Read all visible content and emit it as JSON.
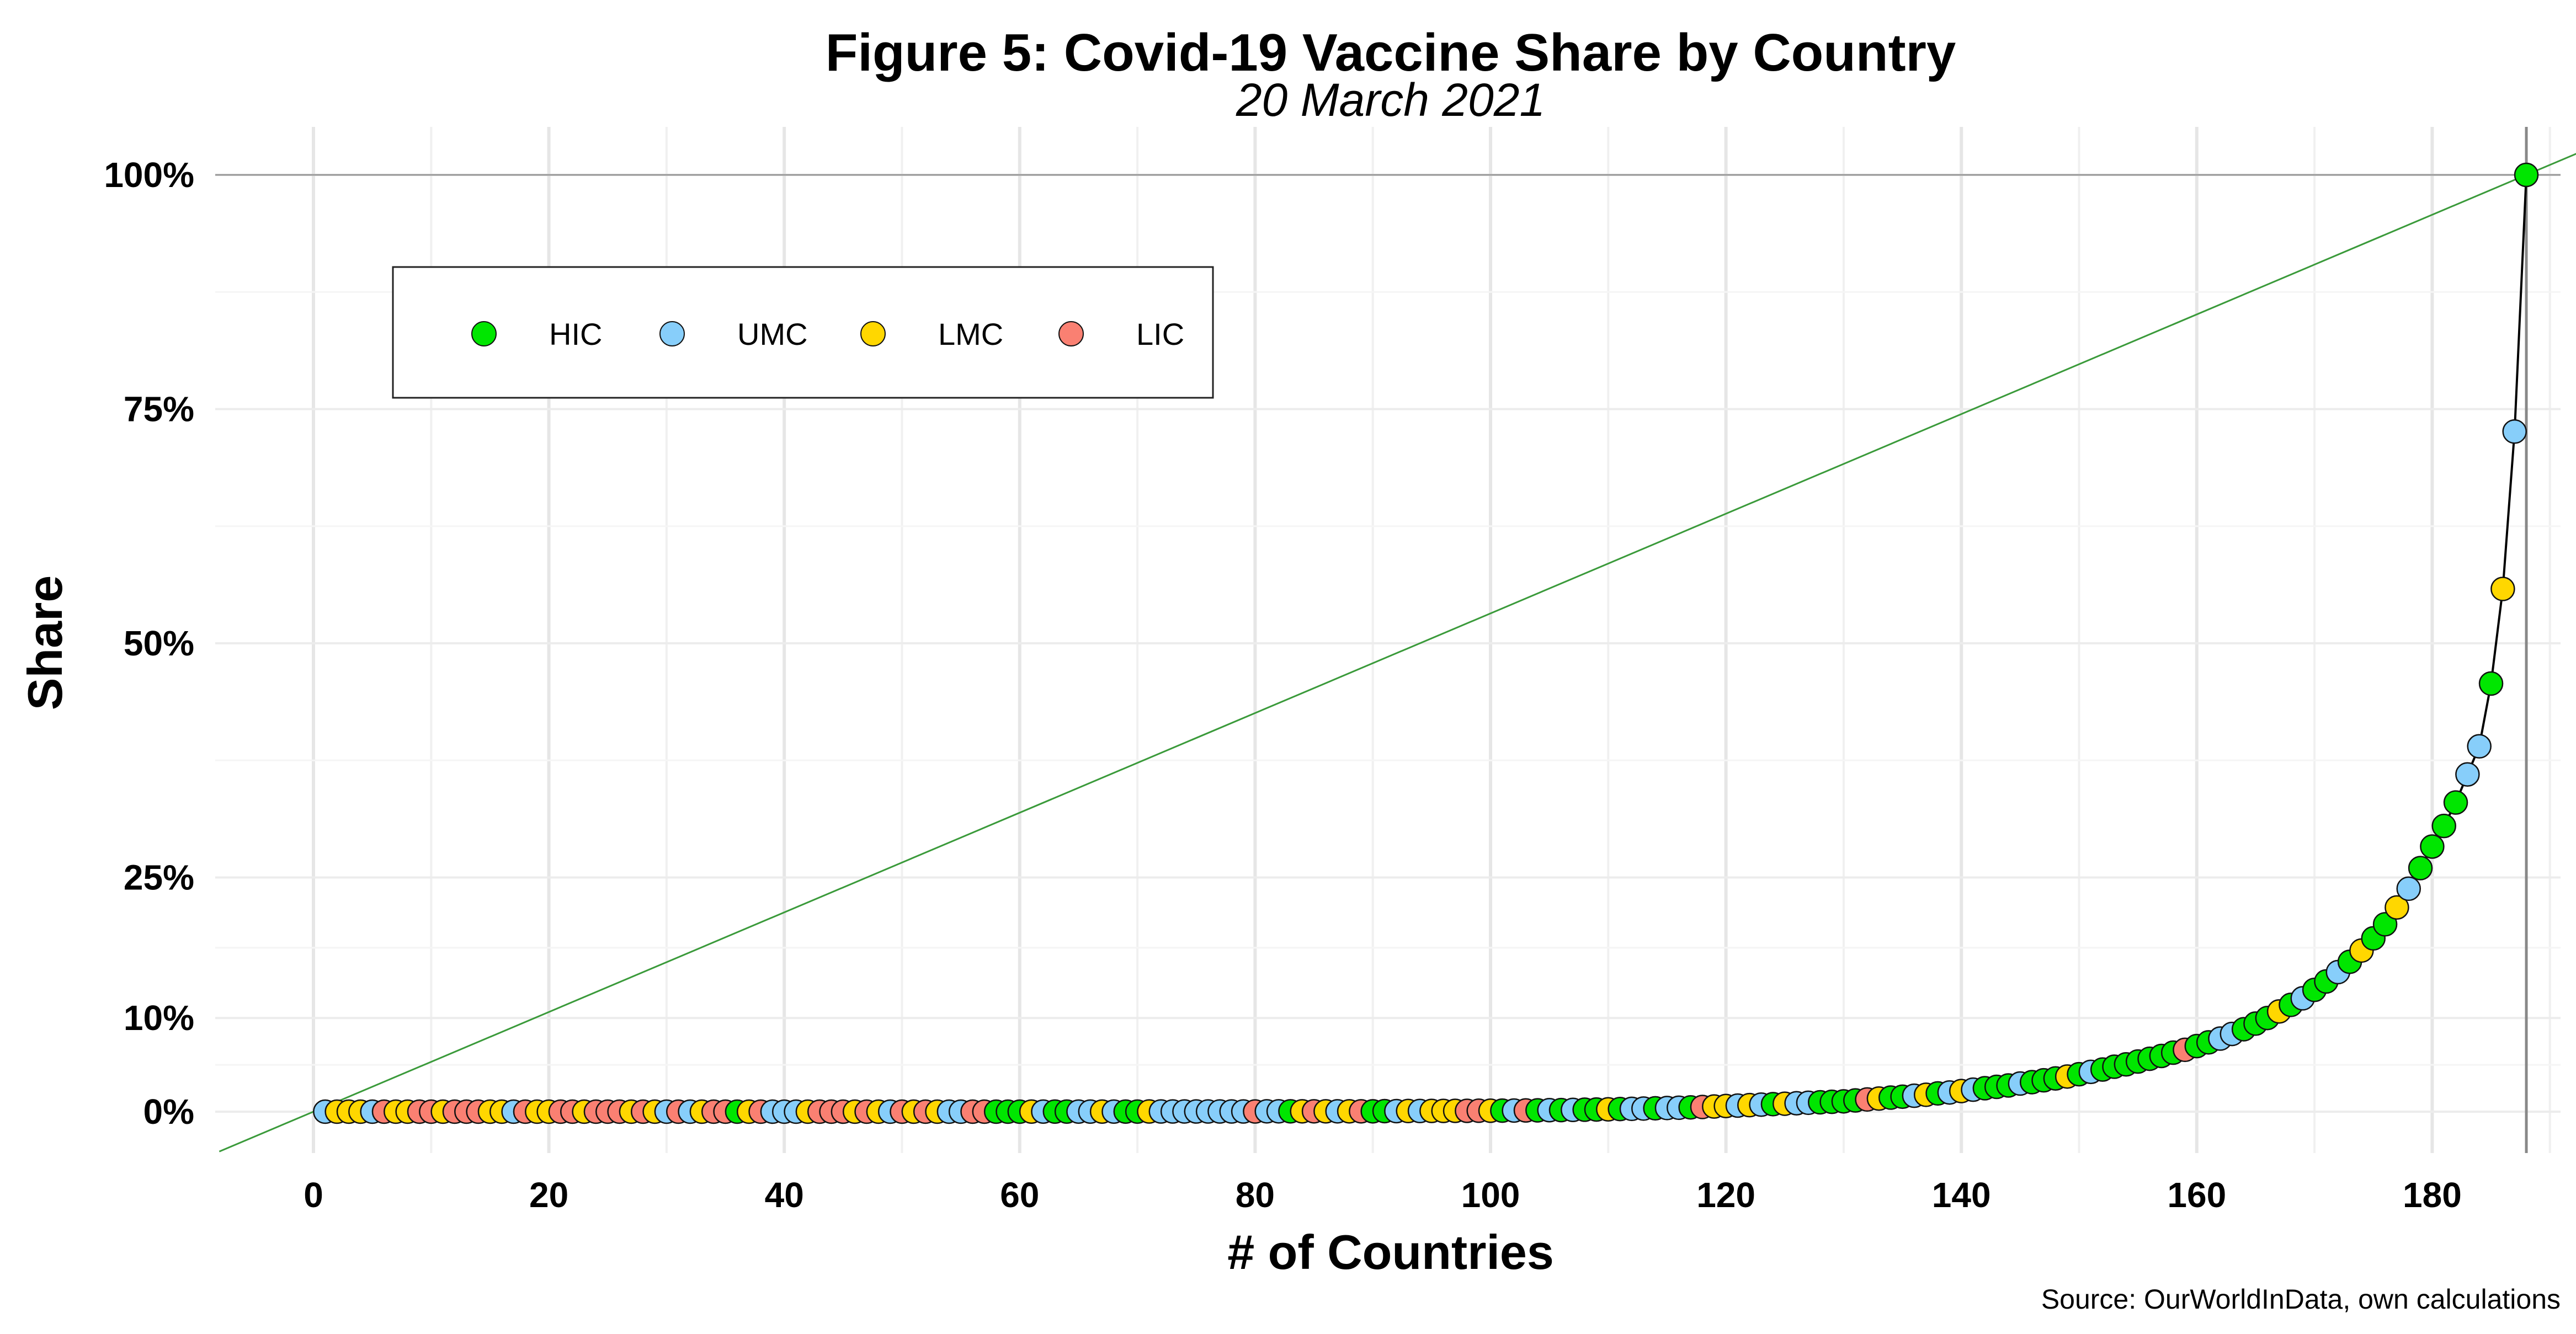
{
  "chart_data": {
    "type": "scatter",
    "title": "Figure 5: Covid-19 Vaccine Share by Country",
    "subtitle": "20 March 2021",
    "xlabel": "# of Countries",
    "ylabel": "Share",
    "source": "Source: OurWorldInData, own calculations",
    "xlim": [
      -8,
      197
    ],
    "ylim": [
      -5,
      105
    ],
    "x_ticks": [
      0,
      20,
      40,
      60,
      80,
      100,
      120,
      140,
      160,
      180
    ],
    "x_tick_labels": [
      "0",
      "20",
      "40",
      "60",
      "80",
      "100",
      "120",
      "140",
      "160",
      "180"
    ],
    "y_ticks": [
      0,
      10,
      25,
      50,
      75,
      100
    ],
    "y_tick_labels": [
      "0%",
      "10%",
      "25%",
      "50%",
      "75%",
      "100%"
    ],
    "grid": true,
    "legend": {
      "placement": "top-left",
      "items": [
        {
          "key": "G",
          "label": "HIC",
          "color": "#00e600"
        },
        {
          "key": "U",
          "label": "UMC",
          "color": "#87cefa"
        },
        {
          "key": "Y",
          "label": "LMC",
          "color": "#ffd700"
        },
        {
          "key": "L",
          "label": "LIC",
          "color": "#fa8072"
        }
      ]
    },
    "reference_line": {
      "from": [
        0,
        0
      ],
      "to": [
        188,
        100
      ],
      "color": "#2e9b2e"
    },
    "marker_line_x": 188,
    "groups": "UYYYULYYLLYLLLYYULYYLLYLLLYLYULUYLLGYLUUUYLLLYLYULYLYUULLGGGYUGGUUYUGGYUUUUUUUULUUGYLYUYLGGUYUYYYLLYGULGUGUGGYGUUGUUGLYYUYUGYUUGGGGLYGGUYGUYUGGGUGGGYGUGGGGGGGLGGUUGGGYGUGGUGYGGYUGGGGUUGYUG",
    "values": [
      0,
      0,
      0,
      0,
      0,
      0,
      0,
      0,
      0,
      0,
      0,
      0,
      0,
      0,
      0,
      0,
      0,
      0,
      0,
      0,
      0,
      0,
      0,
      0,
      0,
      0,
      0,
      0,
      0,
      0,
      0,
      0,
      0,
      0,
      0,
      0,
      0,
      0,
      0,
      0,
      0,
      0,
      0,
      0,
      0,
      0,
      0,
      0,
      0,
      0,
      0,
      0,
      0,
      0,
      0,
      0,
      0,
      0,
      0,
      0,
      0.01,
      0.01,
      0.01,
      0.01,
      0.01,
      0.01,
      0.01,
      0.01,
      0.01,
      0.01,
      0.02,
      0.02,
      0.02,
      0.02,
      0.02,
      0.02,
      0.02,
      0.02,
      0.02,
      0.02,
      0.04,
      0.04,
      0.04,
      0.04,
      0.04,
      0.04,
      0.04,
      0.04,
      0.04,
      0.04,
      0.06,
      0.06,
      0.07,
      0.07,
      0.08,
      0.08,
      0.09,
      0.09,
      0.1,
      0.1,
      0.11,
      0.12,
      0.13,
      0.14,
      0.16,
      0.17,
      0.19,
      0.21,
      0.23,
      0.25,
      0.28,
      0.3,
      0.33,
      0.36,
      0.39,
      0.42,
      0.46,
      0.5,
      0.55,
      0.6,
      0.65,
      0.7,
      0.75,
      0.8,
      0.85,
      0.9,
      0.95,
      1.0,
      1.05,
      1.1,
      1.2,
      1.3,
      1.4,
      1.5,
      1.6,
      1.7,
      1.8,
      1.95,
      2.05,
      2.2,
      2.35,
      2.5,
      2.65,
      2.8,
      3.0,
      3.15,
      3.35,
      3.55,
      3.75,
      4.0,
      4.25,
      4.5,
      4.8,
      5.05,
      5.35,
      5.65,
      5.95,
      6.3,
      6.6,
      7.0,
      7.4,
      7.8,
      8.3,
      8.8,
      9.4,
      10.0,
      10.7,
      11.4,
      12.1,
      13.0,
      13.9,
      14.9,
      16.0,
      17.2,
      18.5,
      20.0,
      21.8,
      23.8,
      26.0,
      28.3,
      30.5,
      33.0,
      36.0,
      39.0,
      45.7,
      55.8,
      72.6,
      100
    ]
  }
}
